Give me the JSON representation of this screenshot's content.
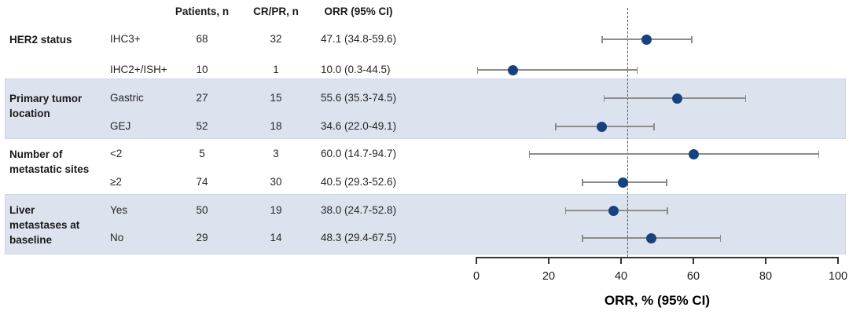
{
  "header": {
    "col_patients": "Patients, n",
    "col_crpr": "CR/PR, n",
    "col_orr": "ORR (95% CI)"
  },
  "axis": {
    "label": "ORR, % (95% CI)",
    "tick_labels": [
      "0",
      "20",
      "40",
      "60",
      "80",
      "100"
    ]
  },
  "colors": {
    "dot": "#17427f",
    "band": "#dce3ef",
    "error_bar": "#8c8c8c",
    "reference_line": "#555555",
    "axis": "#333333"
  },
  "chart_data": {
    "type": "forest",
    "xlabel": "ORR, % (95% CI)",
    "xlim": [
      0,
      100
    ],
    "xticks": [
      0,
      20,
      40,
      60,
      80,
      100
    ],
    "reference_line": 41.8,
    "grid": false,
    "columns": [
      "Patients, n",
      "CR/PR, n",
      "ORR (95% CI)"
    ],
    "groups": [
      {
        "label": "HER2 status",
        "shaded": false,
        "rows": [
          {
            "category": "IHC3+",
            "patients": "68",
            "cr_pr": "32",
            "orr_text": "47.1 (34.8-59.6)",
            "orr": 47.1,
            "ci_low": 34.8,
            "ci_high": 59.6
          },
          {
            "category": "IHC2+/ISH+",
            "patients": "10",
            "cr_pr": "1",
            "orr_text": "10.0 (0.3-44.5)",
            "orr": 10.0,
            "ci_low": 0.3,
            "ci_high": 44.5
          }
        ]
      },
      {
        "label": "Primary tumor location",
        "shaded": true,
        "rows": [
          {
            "category": "Gastric",
            "patients": "27",
            "cr_pr": "15",
            "orr_text": "55.6 (35.3-74.5)",
            "orr": 55.6,
            "ci_low": 35.3,
            "ci_high": 74.5
          },
          {
            "category": "GEJ",
            "patients": "52",
            "cr_pr": "18",
            "orr_text": "34.6 (22.0-49.1)",
            "orr": 34.6,
            "ci_low": 22.0,
            "ci_high": 49.1
          }
        ]
      },
      {
        "label": "Number of metastatic sites",
        "shaded": false,
        "rows": [
          {
            "category": "<2",
            "patients": "5",
            "cr_pr": "3",
            "orr_text": "60.0 (14.7-94.7)",
            "orr": 60.0,
            "ci_low": 14.7,
            "ci_high": 94.7
          },
          {
            "category": "≥2",
            "patients": "74",
            "cr_pr": "30",
            "orr_text": "40.5 (29.3-52.6)",
            "orr": 40.5,
            "ci_low": 29.3,
            "ci_high": 52.6
          }
        ]
      },
      {
        "label": "Liver metastases at baseline",
        "shaded": true,
        "rows": [
          {
            "category": "Yes",
            "patients": "50",
            "cr_pr": "19",
            "orr_text": "38.0 (24.7-52.8)",
            "orr": 38.0,
            "ci_low": 24.7,
            "ci_high": 52.8
          },
          {
            "category": "No",
            "patients": "29",
            "cr_pr": "14",
            "orr_text": "48.3 (29.4-67.5)",
            "orr": 48.3,
            "ci_low": 29.4,
            "ci_high": 67.5
          }
        ]
      }
    ]
  }
}
